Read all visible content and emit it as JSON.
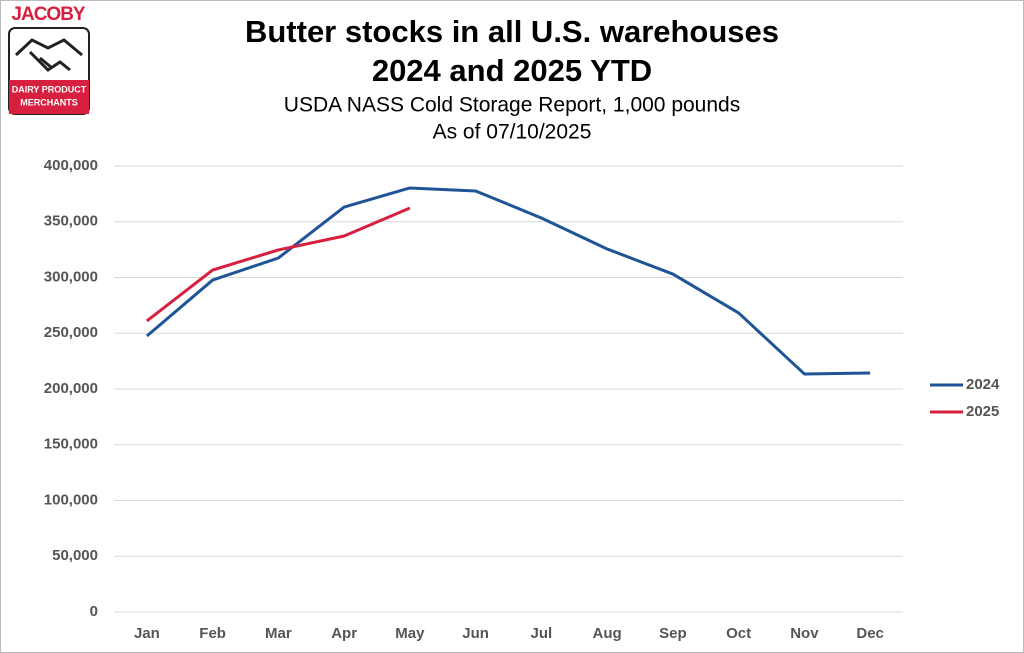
{
  "logo": {
    "name": "JACOBY",
    "tagline": [
      "DAIRY PRODUCT",
      "MERCHANTS"
    ]
  },
  "chart_data": {
    "type": "line",
    "title": [
      "Butter stocks in all U.S. warehouses",
      "2024 and 2025 YTD"
    ],
    "subtitle": [
      "USDA NASS Cold Storage Report, 1,000 pounds",
      "As of 07/10/2025"
    ],
    "categories": [
      "Jan",
      "Feb",
      "Mar",
      "Apr",
      "May",
      "Jun",
      "Jul",
      "Aug",
      "Sep",
      "Oct",
      "Nov",
      "Dec"
    ],
    "series": [
      {
        "name": "2024",
        "color": "#1f5597",
        "values": [
          247500,
          297700,
          317500,
          363200,
          380300,
          377600,
          353400,
          325600,
          303100,
          268200,
          213500,
          214300
        ]
      },
      {
        "name": "2025",
        "color": "#d7203f",
        "values": [
          261000,
          306700,
          324700,
          337200,
          362300,
          null,
          null,
          null,
          null,
          null,
          null,
          null
        ]
      }
    ],
    "ylim": [
      0,
      400000
    ],
    "yticks": [
      0,
      {
        "value": 50000,
        "label": "50,000"
      },
      {
        "value": 100000,
        "label": "100,000"
      },
      {
        "value": 150000,
        "label": "150,000"
      },
      {
        "value": 200000,
        "label": "200,000"
      },
      {
        "value": 250000,
        "label": "250,000"
      },
      {
        "value": 300000,
        "label": "300,000"
      },
      {
        "value": 350000,
        "label": "350,000"
      },
      {
        "value": 400000,
        "label": "400,000"
      }
    ],
    "grid": true,
    "legend": "right"
  }
}
